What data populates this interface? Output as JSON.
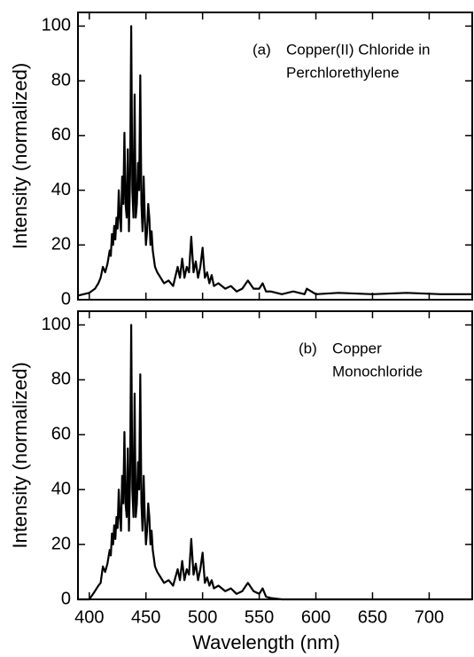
{
  "chart_data": [
    {
      "type": "line",
      "panel_label": "(a)",
      "annotation": [
        "Copper(II) Chloride in",
        "Perchlorethylene"
      ],
      "y_label": "Intensity (normalized)",
      "x": [
        390,
        395,
        400,
        405,
        408,
        410,
        412,
        414,
        416,
        418,
        419,
        420,
        421,
        422,
        423,
        424,
        425,
        426,
        427,
        428,
        429,
        430,
        431,
        432,
        433,
        434,
        435,
        436,
        437,
        438,
        439,
        440,
        441,
        442,
        443,
        444,
        445,
        446,
        447,
        448,
        449,
        450,
        451,
        452,
        453,
        454,
        455,
        456,
        457,
        458,
        460,
        463,
        466,
        470,
        474,
        478,
        480,
        482,
        484,
        486,
        488,
        490,
        492,
        494,
        496,
        498,
        500,
        502,
        504,
        506,
        508,
        510,
        514,
        520,
        525,
        530,
        535,
        540,
        545,
        550,
        553,
        556,
        560,
        570,
        580,
        590,
        592,
        600,
        620,
        650,
        680,
        710,
        738
      ],
      "series": [
        {
          "color": "#000000",
          "values": [
            1.5,
            2,
            2.5,
            4,
            6,
            8,
            12,
            10,
            13,
            18,
            16,
            24,
            20,
            27,
            22,
            30,
            26,
            40,
            30,
            25,
            45,
            35,
            61,
            35,
            30,
            55,
            25,
            45,
            100,
            40,
            30,
            75,
            30,
            35,
            50,
            40,
            82,
            35,
            25,
            45,
            30,
            20,
            25,
            35,
            30,
            20,
            25,
            18,
            15,
            12,
            10,
            8,
            6,
            7,
            5,
            12,
            8,
            15,
            8,
            12,
            10,
            23,
            10,
            14,
            8,
            12,
            19,
            8,
            10,
            6,
            9,
            5,
            6,
            4,
            5,
            3,
            4,
            7,
            4,
            4,
            6,
            3,
            3,
            2,
            3,
            2,
            4,
            2,
            2.5,
            2,
            2.5,
            2,
            2
          ]
        }
      ],
      "xlim": [
        390,
        738
      ],
      "xticks": [
        400,
        450,
        500,
        550,
        600,
        650,
        700
      ],
      "ylim": [
        0,
        105
      ],
      "yticks": [
        0,
        20,
        40,
        60,
        80,
        100
      ]
    },
    {
      "type": "line",
      "panel_label": "(b)",
      "annotation": [
        "Copper",
        "Monochloride"
      ],
      "y_label": "Intensity (normalized)",
      "x_label": "Wavelength (nm)",
      "x": [
        390,
        395,
        400,
        405,
        408,
        410,
        412,
        414,
        416,
        418,
        419,
        420,
        421,
        422,
        423,
        424,
        425,
        426,
        427,
        428,
        429,
        430,
        431,
        432,
        433,
        434,
        435,
        436,
        437,
        438,
        439,
        440,
        441,
        442,
        443,
        444,
        445,
        446,
        447,
        448,
        449,
        450,
        451,
        452,
        453,
        454,
        455,
        456,
        457,
        458,
        460,
        463,
        466,
        470,
        474,
        478,
        480,
        482,
        484,
        486,
        488,
        490,
        492,
        494,
        496,
        498,
        500,
        502,
        504,
        506,
        508,
        510,
        514,
        520,
        525,
        530,
        535,
        540,
        545,
        550,
        553,
        556,
        560,
        570,
        580,
        590,
        592,
        600,
        620,
        650,
        680,
        710,
        738
      ],
      "series": [
        {
          "color": "#000000",
          "values": [
            0,
            0,
            0,
            3,
            5,
            6,
            12,
            10,
            13,
            18,
            16,
            24,
            20,
            27,
            22,
            30,
            26,
            40,
            30,
            25,
            45,
            35,
            61,
            35,
            30,
            55,
            25,
            45,
            100,
            40,
            30,
            75,
            30,
            35,
            50,
            40,
            82,
            35,
            25,
            45,
            30,
            20,
            25,
            35,
            30,
            20,
            25,
            18,
            15,
            12,
            10,
            8,
            6,
            7,
            5,
            11,
            7,
            14,
            7,
            11,
            9,
            22,
            9,
            13,
            7,
            11,
            17,
            6,
            8,
            5,
            7,
            4,
            5,
            3,
            4,
            2,
            3,
            6,
            3,
            2,
            4,
            1,
            0.5,
            0,
            0,
            0,
            0,
            0,
            0,
            0,
            0,
            0,
            0
          ]
        }
      ],
      "xlim": [
        390,
        738
      ],
      "xticks": [
        400,
        450,
        500,
        550,
        600,
        650,
        700
      ],
      "ylim": [
        0,
        105
      ],
      "yticks": [
        0,
        20,
        40,
        60,
        80,
        100
      ]
    }
  ]
}
